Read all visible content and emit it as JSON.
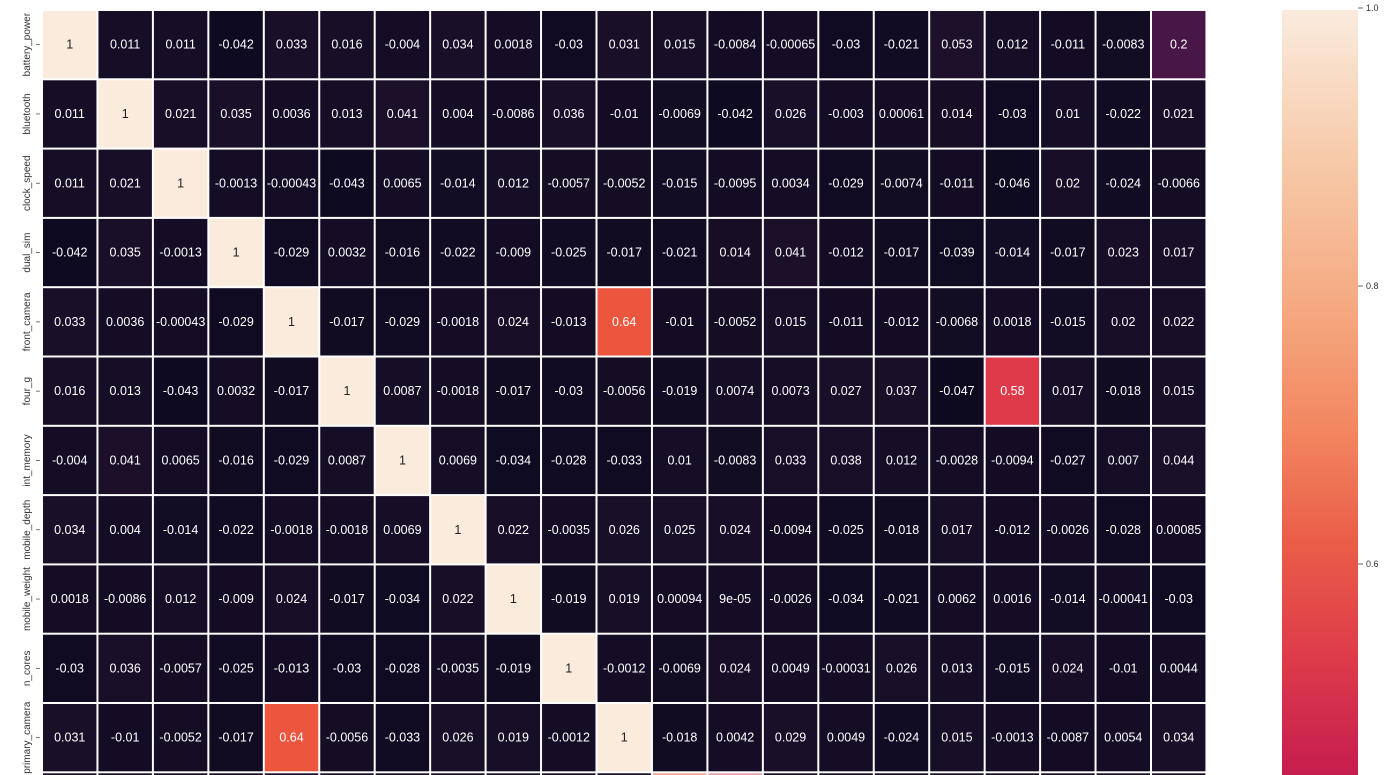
{
  "chart_data": {
    "type": "heatmap",
    "row_labels": [
      "battery_power",
      "bluetooth",
      "clock_speed",
      "dual_sim",
      "front_camera",
      "four_g",
      "int_memory",
      "mobile_depth",
      "mobile_weight",
      "n_cores",
      "primary_camera"
    ],
    "colorbar": {
      "ticks": [
        "1.0",
        "0.8",
        "0.6"
      ],
      "tick_values": [
        1.0,
        0.8,
        0.6
      ]
    },
    "cells": [
      [
        "1",
        "0.011",
        "0.011",
        "-0.042",
        "0.033",
        "0.016",
        "-0.004",
        "0.034",
        "0.0018",
        "-0.03",
        "0.031",
        "0.015",
        "-0.0084",
        "-0.00065",
        "-0.03",
        "-0.021",
        "0.053",
        "0.012",
        "-0.011",
        "-0.0083",
        "0.2"
      ],
      [
        "0.011",
        "1",
        "0.021",
        "0.035",
        "0.0036",
        "0.013",
        "0.041",
        "0.004",
        "-0.0086",
        "0.036",
        "-0.01",
        "-0.0069",
        "-0.042",
        "0.026",
        "-0.003",
        "0.00061",
        "0.014",
        "-0.03",
        "0.01",
        "-0.022",
        "0.021"
      ],
      [
        "0.011",
        "0.021",
        "1",
        "-0.0013",
        "-0.00043",
        "-0.043",
        "0.0065",
        "-0.014",
        "0.012",
        "-0.0057",
        "-0.0052",
        "-0.015",
        "-0.0095",
        "0.0034",
        "-0.029",
        "-0.0074",
        "-0.011",
        "-0.046",
        "0.02",
        "-0.024",
        "-0.0066"
      ],
      [
        "-0.042",
        "0.035",
        "-0.0013",
        "1",
        "-0.029",
        "0.0032",
        "-0.016",
        "-0.022",
        "-0.009",
        "-0.025",
        "-0.017",
        "-0.021",
        "0.014",
        "0.041",
        "-0.012",
        "-0.017",
        "-0.039",
        "-0.014",
        "-0.017",
        "0.023",
        "0.017"
      ],
      [
        "0.033",
        "0.0036",
        "-0.00043",
        "-0.029",
        "1",
        "-0.017",
        "-0.029",
        "-0.0018",
        "0.024",
        "-0.013",
        "0.64",
        "-0.01",
        "-0.0052",
        "0.015",
        "-0.011",
        "-0.012",
        "-0.0068",
        "0.0018",
        "-0.015",
        "0.02",
        "0.022"
      ],
      [
        "0.016",
        "0.013",
        "-0.043",
        "0.0032",
        "-0.017",
        "1",
        "0.0087",
        "-0.0018",
        "-0.017",
        "-0.03",
        "-0.0056",
        "-0.019",
        "0.0074",
        "0.0073",
        "0.027",
        "0.037",
        "-0.047",
        "0.58",
        "0.017",
        "-0.018",
        "0.015"
      ],
      [
        "-0.004",
        "0.041",
        "0.0065",
        "-0.016",
        "-0.029",
        "0.0087",
        "1",
        "0.0069",
        "-0.034",
        "-0.028",
        "-0.033",
        "0.01",
        "-0.0083",
        "0.033",
        "0.038",
        "0.012",
        "-0.0028",
        "-0.0094",
        "-0.027",
        "0.007",
        "0.044"
      ],
      [
        "0.034",
        "0.004",
        "-0.014",
        "-0.022",
        "-0.0018",
        "-0.0018",
        "0.0069",
        "1",
        "0.022",
        "-0.0035",
        "0.026",
        "0.025",
        "0.024",
        "-0.0094",
        "-0.025",
        "-0.018",
        "0.017",
        "-0.012",
        "-0.0026",
        "-0.028",
        "0.00085"
      ],
      [
        "0.0018",
        "-0.0086",
        "0.012",
        "-0.009",
        "0.024",
        "-0.017",
        "-0.034",
        "0.022",
        "1",
        "-0.019",
        "0.019",
        "0.00094",
        "9e-05",
        "-0.0026",
        "-0.034",
        "-0.021",
        "0.0062",
        "0.0016",
        "-0.014",
        "-0.00041",
        "-0.03"
      ],
      [
        "-0.03",
        "0.036",
        "-0.0057",
        "-0.025",
        "-0.013",
        "-0.03",
        "-0.028",
        "-0.0035",
        "-0.019",
        "1",
        "-0.0012",
        "-0.0069",
        "0.024",
        "0.0049",
        "-0.00031",
        "0.026",
        "0.013",
        "-0.015",
        "0.024",
        "-0.01",
        "0.0044"
      ],
      [
        "0.031",
        "-0.01",
        "-0.0052",
        "-0.017",
        "0.64",
        "-0.0056",
        "-0.033",
        "0.026",
        "0.019",
        "-0.0012",
        "1",
        "-0.018",
        "0.0042",
        "0.029",
        "0.0049",
        "-0.024",
        "0.015",
        "-0.0013",
        "-0.0087",
        "0.0054",
        "0.034"
      ]
    ],
    "partial_next_row_colors": [
      "#d0365a",
      "#f0a48a",
      "#f3b79f",
      "#f0b197",
      "#e3a0a8"
    ]
  }
}
